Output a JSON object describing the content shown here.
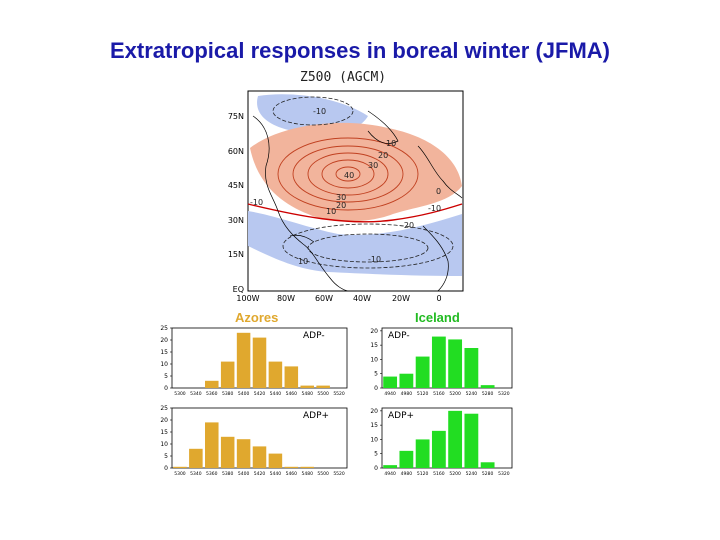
{
  "slide": {
    "title": "Extratropical responses in boreal winter (JFMA)",
    "map_title": "Z500 (AGCM)"
  },
  "map": {
    "lat_ticks": [
      "75N",
      "60N",
      "45N",
      "30N",
      "15N",
      "EQ"
    ],
    "lon_ticks": [
      "100W",
      "80W",
      "60W",
      "40W",
      "20W",
      "0"
    ],
    "contour_labels": [
      "-10",
      "10",
      "20",
      "30",
      "40",
      "10",
      "20",
      "30",
      "0",
      "-10",
      "-10",
      "-20",
      "-10",
      "10"
    ],
    "colors": {
      "positive": "#f2b49c",
      "negative": "#b8c8f0",
      "zero_line": "#cc0000"
    }
  },
  "panel_labels": {
    "azores": "Azores",
    "iceland": "Iceland"
  },
  "colors": {
    "azores_bar": "#e0a82e",
    "iceland_bar": "#22dd22"
  },
  "chart_data": [
    {
      "type": "bar",
      "title": "Azores",
      "legend": "ADP-",
      "categories": [
        "5300",
        "5340",
        "5360",
        "5380",
        "5400",
        "5420",
        "5440",
        "5460",
        "5480",
        "5500",
        "5520"
      ],
      "values": [
        0,
        0,
        3,
        11,
        23,
        21,
        11,
        9,
        1,
        1,
        0
      ],
      "yticks": [
        "0",
        "5",
        "10",
        "15",
        "20",
        "25"
      ],
      "ylim": [
        0,
        25
      ]
    },
    {
      "type": "bar",
      "title": "Iceland",
      "legend": "ADP-",
      "categories": [
        "4940",
        "4980",
        "5120",
        "5160",
        "5200",
        "5240",
        "5280",
        "5320"
      ],
      "values": [
        4,
        5,
        11,
        18,
        17,
        14,
        1,
        0
      ],
      "yticks": [
        "0",
        "5",
        "10",
        "15",
        "20"
      ],
      "ylim": [
        0,
        21
      ]
    },
    {
      "type": "bar",
      "legend": "ADP+",
      "categories": [
        "5300",
        "5340",
        "5360",
        "5380",
        "5400",
        "5420",
        "5440",
        "5460",
        "5480",
        "5500",
        "5520"
      ],
      "values": [
        0.5,
        8,
        19,
        13,
        12,
        9,
        6,
        0.5,
        0.5,
        0,
        0
      ],
      "yticks": [
        "0",
        "5",
        "10",
        "15",
        "20",
        "25"
      ],
      "ylim": [
        0,
        25
      ]
    },
    {
      "type": "bar",
      "legend": "ADP+",
      "categories": [
        "4940",
        "4980",
        "5120",
        "5160",
        "5200",
        "5240",
        "5280",
        "5320"
      ],
      "values": [
        1,
        6,
        10,
        13,
        20,
        19,
        2,
        0
      ],
      "yticks": [
        "0",
        "5",
        "10",
        "15",
        "20"
      ],
      "ylim": [
        0,
        21
      ]
    }
  ]
}
